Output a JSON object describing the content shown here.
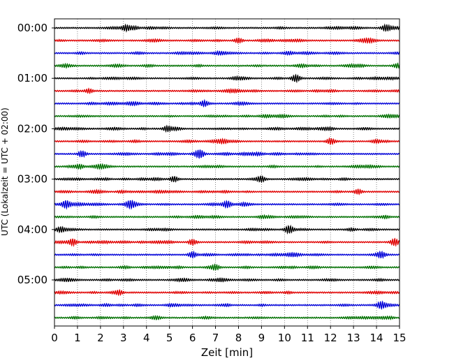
{
  "chart_data": {
    "type": "line",
    "title": "",
    "xlabel": "Zeit  [min]",
    "ylabel": "UTC (Lokalzeit = UTC + 02:00)",
    "xlim": [
      0,
      15
    ],
    "xticks": [
      "0",
      "1",
      "2",
      "3",
      "4",
      "5",
      "6",
      "7",
      "8",
      "9",
      "10",
      "11",
      "12",
      "13",
      "14",
      "15"
    ],
    "ytick_labels": [
      "00:00",
      "01:00",
      "02:00",
      "03:00",
      "04:00",
      "05:00"
    ],
    "grid": "vertical dotted",
    "legend": "none",
    "trace_interval_min": 15,
    "trace_count": 24,
    "trace_colors": [
      "#000000",
      "#e00000",
      "#0000d8",
      "#007000"
    ],
    "events": [
      {
        "trace": 0,
        "time_min": 3.1,
        "amp": 0.9
      },
      {
        "trace": 0,
        "time_min": 14.4,
        "amp": 0.9
      },
      {
        "trace": 1,
        "time_min": 8.0,
        "amp": 0.8
      },
      {
        "trace": 3,
        "time_min": 14.9,
        "amp": 0.7
      },
      {
        "trace": 4,
        "time_min": 10.5,
        "amp": 1.0
      },
      {
        "trace": 5,
        "time_min": 1.5,
        "amp": 0.7
      },
      {
        "trace": 6,
        "time_min": 6.5,
        "amp": 0.8
      },
      {
        "trace": 8,
        "time_min": 4.9,
        "amp": 0.8
      },
      {
        "trace": 9,
        "time_min": 12.0,
        "amp": 0.8
      },
      {
        "trace": 10,
        "time_min": 1.2,
        "amp": 1.0
      },
      {
        "trace": 10,
        "time_min": 6.3,
        "amp": 1.4
      },
      {
        "trace": 11,
        "time_min": 1.1,
        "amp": 0.7
      },
      {
        "trace": 12,
        "time_min": 5.2,
        "amp": 0.9
      },
      {
        "trace": 12,
        "time_min": 9.0,
        "amp": 0.8
      },
      {
        "trace": 13,
        "time_min": 13.2,
        "amp": 0.8
      },
      {
        "trace": 14,
        "time_min": 0.5,
        "amp": 1.2
      },
      {
        "trace": 14,
        "time_min": 3.3,
        "amp": 0.9
      },
      {
        "trace": 14,
        "time_min": 7.5,
        "amp": 0.9
      },
      {
        "trace": 16,
        "time_min": 10.2,
        "amp": 0.8
      },
      {
        "trace": 17,
        "time_min": 0.8,
        "amp": 1.1
      },
      {
        "trace": 17,
        "time_min": 6.0,
        "amp": 0.9
      },
      {
        "trace": 17,
        "time_min": 14.8,
        "amp": 0.9
      },
      {
        "trace": 18,
        "time_min": 6.0,
        "amp": 1.0
      },
      {
        "trace": 18,
        "time_min": 14.2,
        "amp": 0.8
      },
      {
        "trace": 19,
        "time_min": 7.0,
        "amp": 0.8
      },
      {
        "trace": 22,
        "time_min": 14.2,
        "amp": 1.0
      }
    ]
  }
}
